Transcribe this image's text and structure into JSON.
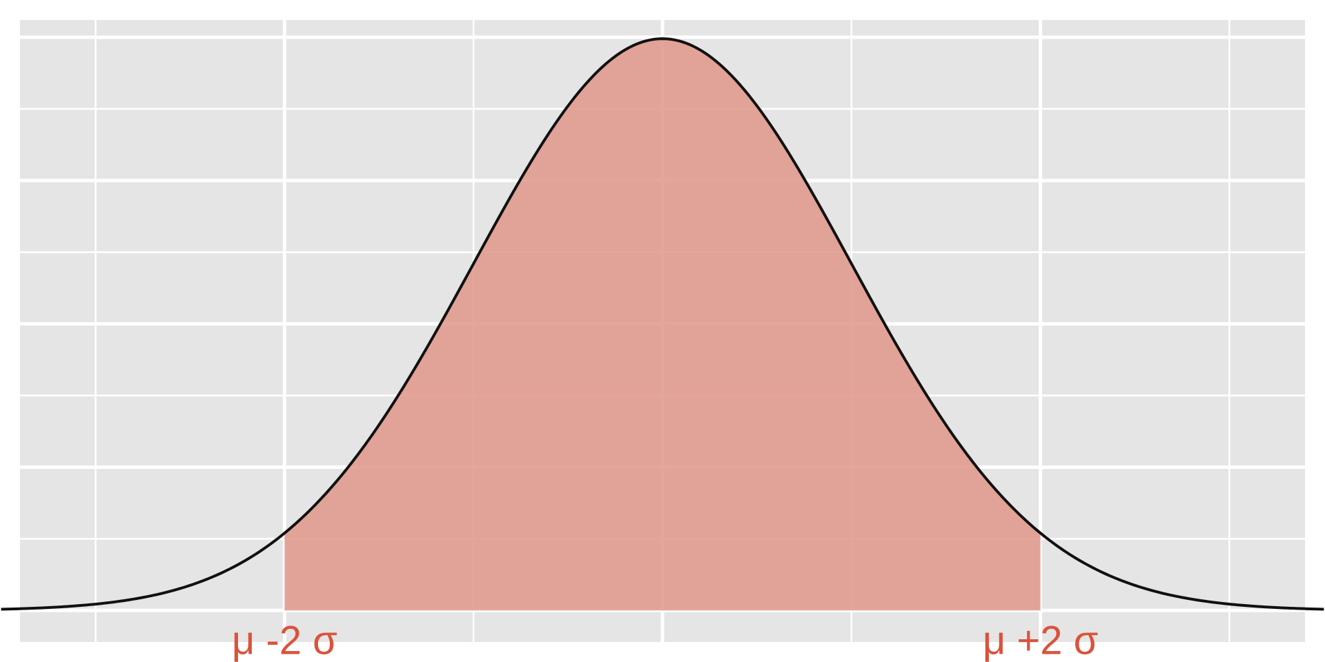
{
  "chart_data": {
    "type": "area",
    "title": "",
    "xlabel": "",
    "ylabel": "",
    "distribution": "normal",
    "mean": 0,
    "sd": 1,
    "xlim": [
      -3.4,
      3.4
    ],
    "ylim": [
      -0.022,
      0.412
    ],
    "curve_range": [
      -3.5,
      3.5
    ],
    "shaded_range": [
      -2,
      2
    ],
    "x_major_gridlines": [
      -4,
      -2,
      0,
      2,
      4
    ],
    "x_minor_gridlines": [
      -3,
      -1,
      1,
      3
    ],
    "y_major_gridlines": [
      0.0,
      0.1,
      0.2,
      0.3,
      0.4
    ],
    "y_minor_gridlines": [
      0.05,
      0.15,
      0.25,
      0.35
    ],
    "grid": true,
    "legend": "none",
    "annotations": [
      {
        "x": -2,
        "label": "μ -2 σ"
      },
      {
        "x": 2,
        "label": "μ +2 σ"
      }
    ],
    "colors": {
      "panel": "#e5e5e5",
      "grid": "#ffffff",
      "curve": "#111111",
      "fill": "#e0988c",
      "annotation": "#d9533b"
    }
  }
}
